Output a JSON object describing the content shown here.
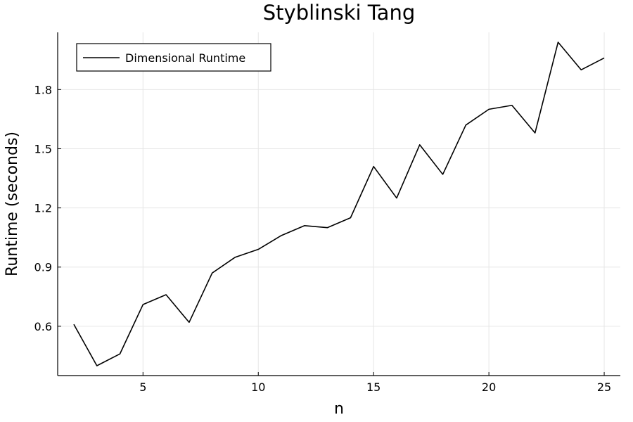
{
  "chart_data": {
    "type": "line",
    "title": "Styblinski Tang",
    "xlabel": "n",
    "ylabel": "Runtime (seconds)",
    "xlim": [
      1.3,
      25.7
    ],
    "ylim": [
      0.35,
      2.09
    ],
    "xticks": [
      5,
      10,
      15,
      20,
      25
    ],
    "yticks": [
      0.6,
      0.9,
      1.2,
      1.5,
      1.8
    ],
    "ytick_labels": [
      "0.6",
      "0.9",
      "1.2",
      "1.5",
      "1.8"
    ],
    "grid": true,
    "legend": {
      "position": "top-left"
    },
    "series": [
      {
        "name": "Dimensional Runtime",
        "color": "#000000",
        "x": [
          2,
          3,
          4,
          5,
          6,
          7,
          8,
          9,
          10,
          11,
          12,
          13,
          14,
          15,
          16,
          17,
          18,
          19,
          20,
          21,
          22,
          23,
          24,
          25
        ],
        "y": [
          0.61,
          0.4,
          0.46,
          0.71,
          0.76,
          0.62,
          0.87,
          0.95,
          0.99,
          1.06,
          1.11,
          1.1,
          1.15,
          1.41,
          1.25,
          1.52,
          1.37,
          1.62,
          1.7,
          1.72,
          1.58,
          2.04,
          1.9,
          1.96
        ]
      }
    ]
  }
}
